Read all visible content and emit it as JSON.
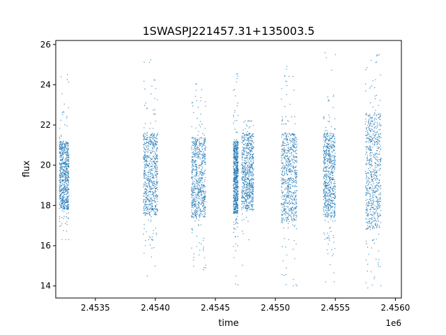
{
  "chart_data": {
    "type": "scatter",
    "title": "1SWASPJ221457.31+135003.5",
    "xlabel": "time",
    "ylabel": "flux",
    "x_offset_label": "1e6",
    "x_offset_factor": 1000000,
    "xlim": [
      2.45317,
      2.45605
    ],
    "ylim": [
      13.4,
      26.2
    ],
    "xticks": [
      2.4535,
      2.454,
      2.4545,
      2.455,
      2.4555,
      2.456
    ],
    "xtick_labels": [
      "2.4535",
      "2.4540",
      "2.4545",
      "2.4550",
      "2.4555",
      "2.4560"
    ],
    "yticks": [
      14,
      16,
      18,
      20,
      22,
      24,
      26
    ],
    "ytick_labels": [
      "14",
      "16",
      "18",
      "20",
      "22",
      "24",
      "26"
    ],
    "grid": false,
    "legend": "none",
    "series_color": "#1f77b4",
    "observing_seasons": [
      {
        "x_start": 2.4532,
        "x_end": 2.45328,
        "flux_min": 16.3,
        "flux_max": 25.2,
        "core_min": 17.8,
        "core_max": 21.2
      },
      {
        "x_start": 2.4539,
        "x_end": 2.45402,
        "flux_min": 14.1,
        "flux_max": 25.4,
        "core_min": 17.5,
        "core_max": 21.6
      },
      {
        "x_start": 2.4543,
        "x_end": 2.45442,
        "flux_min": 14.8,
        "flux_max": 24.1,
        "core_min": 17.4,
        "core_max": 21.4
      },
      {
        "x_start": 2.45465,
        "x_end": 2.45469,
        "flux_min": 13.9,
        "flux_max": 24.6,
        "core_min": 17.6,
        "core_max": 21.2
      },
      {
        "x_start": 2.45472,
        "x_end": 2.45482,
        "flux_min": 14.0,
        "flux_max": 22.2,
        "core_min": 17.8,
        "core_max": 21.6
      },
      {
        "x_start": 2.45505,
        "x_end": 2.45518,
        "flux_min": 14.0,
        "flux_max": 25.2,
        "core_min": 17.2,
        "core_max": 21.6
      },
      {
        "x_start": 2.4554,
        "x_end": 2.4555,
        "flux_min": 14.2,
        "flux_max": 25.6,
        "core_min": 17.4,
        "core_max": 21.6
      },
      {
        "x_start": 2.45575,
        "x_end": 2.45588,
        "flux_min": 13.9,
        "flux_max": 25.5,
        "core_min": 16.8,
        "core_max": 22.6
      }
    ]
  }
}
